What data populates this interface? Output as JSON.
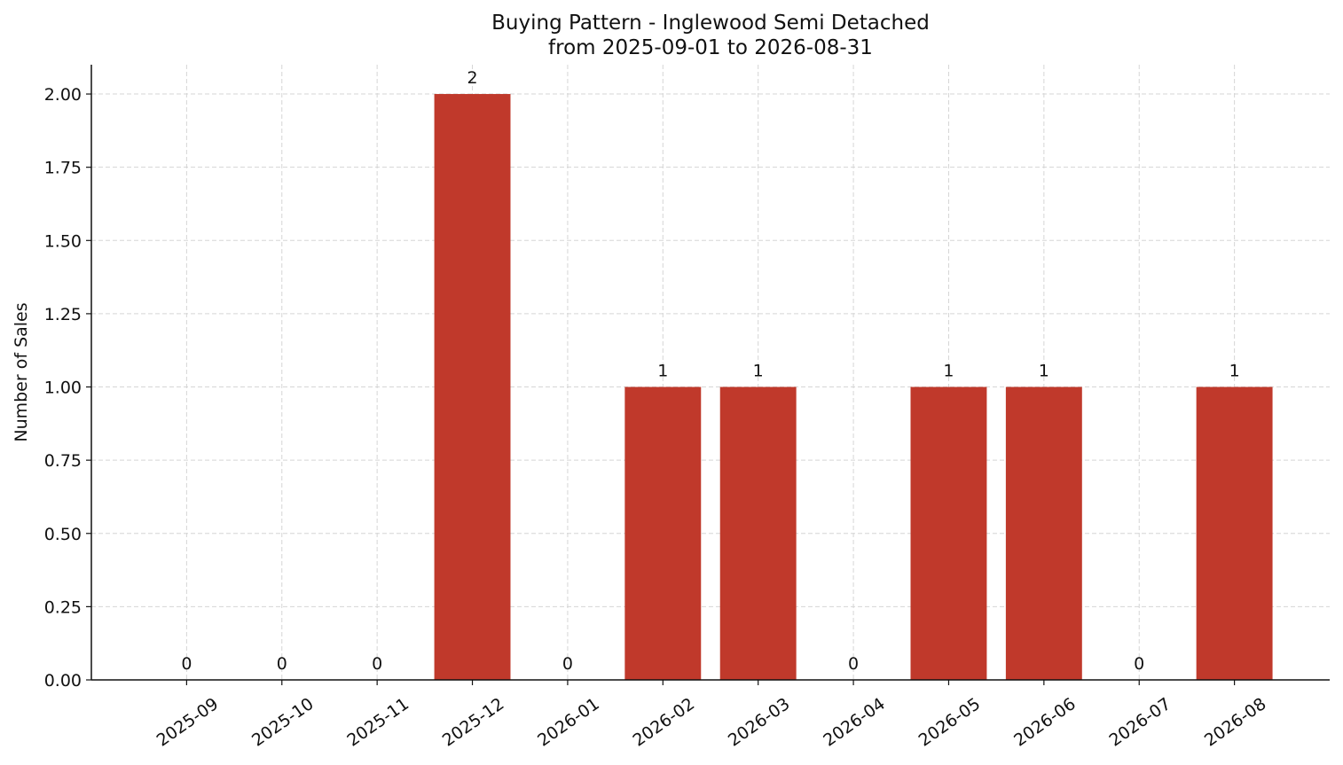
{
  "chart_data": {
    "type": "bar",
    "title": "Buying Pattern - Inglewood Semi Detached",
    "subtitle": "from 2025-09-01 to 2026-08-31",
    "y_label": "Number of Sales",
    "categories": [
      "2025-09",
      "2025-10",
      "2025-11",
      "2025-12",
      "2026-01",
      "2026-02",
      "2026-03",
      "2026-04",
      "2026-05",
      "2026-06",
      "2026-07",
      "2026-08"
    ],
    "values": [
      0,
      0,
      0,
      2,
      0,
      1,
      1,
      0,
      1,
      1,
      0,
      1
    ],
    "color": "#c0392b",
    "ylim": [
      0,
      2.1
    ],
    "yticks": [
      {
        "value": 0,
        "label": "0.00"
      },
      {
        "value": 0.25,
        "label": "0.25"
      },
      {
        "value": 0.5,
        "label": "0.50"
      },
      {
        "value": 0.75,
        "label": "0.75"
      },
      {
        "value": 1,
        "label": "1.00"
      },
      {
        "value": 1.25,
        "label": "1.25"
      },
      {
        "value": 1.5,
        "label": "1.50"
      },
      {
        "value": 1.75,
        "label": "1.75"
      },
      {
        "value": 2,
        "label": "2.00"
      }
    ],
    "grid": true
  }
}
